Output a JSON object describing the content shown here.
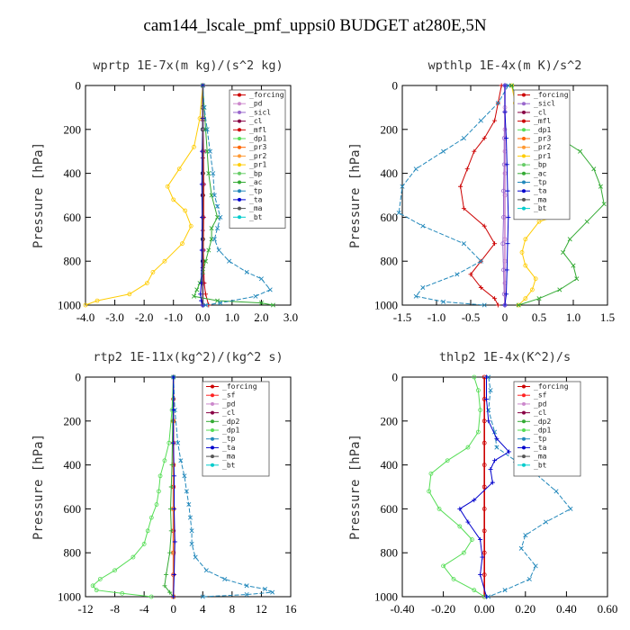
{
  "figure_title": "cam144_lscale_pmf_uppsi0  BUDGET at280E,5N",
  "chart_data": [
    {
      "type": "line",
      "title": "wprtp  1E-7x(m kg)/(s^2 kg)",
      "ylabel": "Pressure [hPa]",
      "xlim": [
        -4.0,
        3.0
      ],
      "ylim": [
        1000,
        0
      ],
      "xticks": [
        "-4.0",
        "-3.0",
        "-2.0",
        "-1.0",
        "0.0",
        "1.0",
        "2.0",
        "3.0"
      ],
      "yticks": [
        "0",
        "200",
        "400",
        "600",
        "800",
        "1000"
      ],
      "legend": [
        "_forcing",
        "_pd",
        "_sicl",
        "_cl",
        "_mfl",
        "_dp1",
        "_pr3",
        "_pr2",
        "_pr1",
        "_bp",
        "_ac",
        "_tp",
        "_ta",
        "_ma",
        "_bt"
      ],
      "series": [
        {
          "name": "_forcing",
          "color": "#000000",
          "marker": "circle",
          "x": [
            0,
            0,
            0,
            0,
            0,
            0,
            0,
            0,
            0,
            0,
            0
          ],
          "y": [
            0,
            100,
            200,
            300,
            400,
            500,
            600,
            700,
            800,
            900,
            1000
          ]
        },
        {
          "name": "_pd",
          "color": "#cc88cc",
          "marker": "circle",
          "x": [
            0,
            0,
            0,
            0,
            0,
            0,
            0,
            0
          ],
          "y": [
            0,
            150,
            300,
            450,
            600,
            750,
            900,
            1000
          ]
        },
        {
          "name": "_sicl",
          "color": "#9966cc",
          "marker": "circle",
          "x": [
            0.02,
            0.02,
            0.03,
            0.03,
            0.02,
            0.02,
            0.02,
            0.01
          ],
          "y": [
            0,
            150,
            300,
            450,
            600,
            750,
            900,
            1000
          ]
        },
        {
          "name": "_cl",
          "color": "#880044",
          "marker": "plus",
          "x": [
            0,
            0,
            0,
            0,
            0,
            0,
            0
          ],
          "y": [
            0,
            160,
            330,
            500,
            660,
            830,
            1000
          ]
        },
        {
          "name": "_mfl",
          "color": "#cc0000",
          "marker": "plus",
          "x": [
            0,
            0,
            0.02,
            0.03,
            0.03,
            0.02,
            0.05,
            0.1,
            0.2
          ],
          "y": [
            0,
            150,
            300,
            450,
            600,
            750,
            900,
            950,
            1000
          ]
        },
        {
          "name": "_pr1",
          "color": "#ffcc00",
          "marker": "circle",
          "x": [
            0,
            -0.1,
            -0.3,
            -0.8,
            -1.2,
            -1.0,
            -0.6,
            -0.4,
            -0.7,
            -1.3,
            -1.7,
            -1.9,
            -2.5,
            -3.6,
            -4.0
          ],
          "y": [
            0,
            150,
            280,
            380,
            460,
            520,
            570,
            640,
            720,
            800,
            850,
            900,
            950,
            980,
            1000
          ]
        },
        {
          "name": "_ac",
          "color": "#33aa33",
          "marker": "x",
          "x": [
            0,
            0.05,
            0.1,
            0.15,
            0.2,
            0.3,
            0.5,
            0.3,
            0.3,
            0.2,
            0.1,
            0,
            -0.1,
            -0.2,
            -0.3,
            0.5,
            2.0,
            2.4
          ],
          "y": [
            0,
            100,
            200,
            300,
            400,
            500,
            600,
            650,
            700,
            750,
            800,
            850,
            900,
            930,
            960,
            980,
            990,
            1000
          ]
        },
        {
          "name": "_tp",
          "color": "#2288bb",
          "marker": "x",
          "x": [
            0,
            0.05,
            0.15,
            0.25,
            0.35,
            0.4,
            0.5,
            0.6,
            0.5,
            0.4,
            0.55,
            0.9,
            1.5,
            2.0,
            2.3,
            1.8,
            0.6,
            0.1
          ],
          "y": [
            0,
            100,
            200,
            300,
            400,
            500,
            550,
            600,
            650,
            700,
            750,
            800,
            850,
            880,
            930,
            960,
            990,
            1000
          ]
        },
        {
          "name": "_ta",
          "color": "#0000cc",
          "marker": "plus",
          "x": [
            0,
            0,
            -0.02,
            -0.03,
            -0.02,
            -0.03,
            -0.05,
            -0.08,
            -0.05,
            0
          ],
          "y": [
            0,
            150,
            300,
            450,
            600,
            750,
            900,
            950,
            980,
            1000
          ]
        },
        {
          "name": "_ma",
          "color": "#555555",
          "marker": "none",
          "x": [
            0,
            0,
            0,
            0,
            0,
            0
          ],
          "y": [
            0,
            200,
            400,
            600,
            800,
            1000
          ]
        }
      ]
    },
    {
      "type": "line",
      "title": "wpthlp  1E-4x(m K)/s^2",
      "ylabel": "Pressure [hPa]",
      "xlim": [
        -1.5,
        1.5
      ],
      "ylim": [
        1000,
        0
      ],
      "xticks": [
        "-1.5",
        "-1.0",
        "-0.5",
        "0",
        "0.5",
        "1.0",
        "1.5"
      ],
      "yticks": [
        "0",
        "200",
        "400",
        "600",
        "800",
        "1000"
      ],
      "legend": [
        "_forcing",
        "_sicl",
        "_cl",
        "_mfl",
        "_dp1",
        "_pr3",
        "_pr2",
        "_pr1",
        "_bp",
        "_ac",
        "_tp",
        "_ta",
        "_ma",
        "_bt"
      ],
      "series": [
        {
          "name": "_forcing",
          "color": "#cc88cc",
          "marker": "circle",
          "x": [
            0,
            0,
            0,
            0,
            0,
            0,
            0,
            0,
            0,
            0,
            0
          ],
          "y": [
            0,
            100,
            200,
            300,
            400,
            500,
            600,
            700,
            800,
            900,
            1000
          ]
        },
        {
          "name": "_sicl",
          "color": "#9966cc",
          "marker": "circle",
          "x": [
            0,
            0,
            -0.01,
            -0.01,
            -0.02,
            -0.02,
            -0.03,
            -0.02,
            -0.01,
            0
          ],
          "y": [
            0,
            120,
            240,
            360,
            480,
            600,
            720,
            840,
            950,
            1000
          ]
        },
        {
          "name": "_mfl",
          "color": "#cc0000",
          "marker": "plus",
          "x": [
            -0.05,
            -0.1,
            -0.15,
            -0.3,
            -0.45,
            -0.55,
            -0.65,
            -0.6,
            -0.3,
            -0.15,
            -0.35,
            -0.5,
            -0.35,
            -0.15,
            -0.1
          ],
          "y": [
            0,
            80,
            160,
            240,
            300,
            380,
            460,
            560,
            640,
            720,
            800,
            860,
            920,
            970,
            1000
          ]
        },
        {
          "name": "_pr1",
          "color": "#ffcc00",
          "marker": "circle",
          "x": [
            0.1,
            0.15,
            0.3,
            0.5,
            0.7,
            0.75,
            0.85,
            0.9,
            0.5,
            0.3,
            0.25,
            0.3,
            0.45,
            0.4,
            0.3,
            0.2
          ],
          "y": [
            0,
            80,
            160,
            240,
            320,
            400,
            480,
            580,
            620,
            700,
            760,
            820,
            880,
            930,
            970,
            1000
          ]
        },
        {
          "name": "_ac",
          "color": "#33aa33",
          "marker": "x",
          "x": [
            0.1,
            0.2,
            0.5,
            0.8,
            1.1,
            1.3,
            1.4,
            1.45,
            1.2,
            0.95,
            0.85,
            1.0,
            1.05,
            0.8,
            0.5,
            0.2
          ],
          "y": [
            0,
            80,
            160,
            240,
            300,
            380,
            460,
            540,
            620,
            700,
            760,
            820,
            880,
            930,
            970,
            1000
          ]
        },
        {
          "name": "_tp",
          "color": "#2288bb",
          "marker": "x",
          "x": [
            0.05,
            -0.1,
            -0.35,
            -0.6,
            -0.9,
            -1.3,
            -1.5,
            -1.55,
            -1.2,
            -0.6,
            -0.35,
            -0.7,
            -1.2,
            -1.3,
            -0.9,
            -0.3
          ],
          "y": [
            0,
            80,
            160,
            240,
            300,
            380,
            460,
            580,
            640,
            720,
            800,
            860,
            920,
            960,
            985,
            1000
          ]
        },
        {
          "name": "_ta",
          "color": "#0000cc",
          "marker": "plus",
          "x": [
            0,
            0,
            0.02,
            0.03,
            0.04,
            0.05,
            0.04,
            0.03,
            0.02,
            0
          ],
          "y": [
            0,
            120,
            240,
            360,
            480,
            600,
            720,
            840,
            950,
            1000
          ]
        }
      ]
    },
    {
      "type": "line",
      "title": "rtp2  1E-11x(kg^2)/(kg^2 s)",
      "ylabel": "Pressure [hPa]",
      "xlim": [
        -12,
        16
      ],
      "ylim": [
        1000,
        0
      ],
      "xticks": [
        "-12",
        "-8",
        "-4",
        "0",
        "4",
        "8",
        "12",
        "16"
      ],
      "yticks": [
        "0",
        "200",
        "400",
        "600",
        "800",
        "1000"
      ],
      "legend": [
        "_forcing",
        "_sf",
        "_pd",
        "_cl",
        "_dp2",
        "_dp1",
        "_tp",
        "_ta",
        "_ma",
        "_bt"
      ],
      "series": [
        {
          "name": "_forcing",
          "color": "#cc0000",
          "marker": "circle",
          "x": [
            0,
            0,
            0,
            0,
            0,
            0,
            0,
            0,
            0,
            0,
            0
          ],
          "y": [
            0,
            100,
            200,
            300,
            400,
            500,
            600,
            700,
            800,
            900,
            1000
          ]
        },
        {
          "name": "_sf",
          "color": "#ff2222",
          "marker": "plus",
          "x": [
            0,
            0,
            0,
            0,
            0,
            0
          ],
          "y": [
            0,
            200,
            400,
            600,
            800,
            1000
          ]
        },
        {
          "name": "_pd",
          "color": "#ff9933",
          "marker": "x",
          "x": [
            0,
            0,
            0,
            0,
            0,
            0
          ],
          "y": [
            0,
            200,
            400,
            600,
            800,
            1000
          ]
        },
        {
          "name": "_dp1",
          "color": "#55dd55",
          "marker": "circle",
          "x": [
            0,
            -0.2,
            -0.6,
            -1.2,
            -1.8,
            -2.0,
            -2.3,
            -3.0,
            -3.5,
            -4.0,
            -5.5,
            -8.0,
            -10.0,
            -11.0,
            -10.5,
            -7.0,
            -3.0
          ],
          "y": [
            0,
            150,
            300,
            380,
            450,
            520,
            580,
            640,
            700,
            760,
            820,
            880,
            920,
            950,
            970,
            985,
            1000
          ]
        },
        {
          "name": "_dp2",
          "color": "#33aa33",
          "marker": "plus",
          "x": [
            0,
            -0.1,
            -0.2,
            -0.3,
            -0.4,
            -0.3,
            -0.5,
            -1.0,
            -1.2,
            -0.5,
            0
          ],
          "y": [
            0,
            200,
            400,
            500,
            600,
            700,
            800,
            900,
            950,
            980,
            1000
          ]
        },
        {
          "name": "_tp",
          "color": "#2288bb",
          "marker": "x",
          "x": [
            0,
            0.2,
            0.6,
            1.0,
            1.5,
            1.8,
            2.1,
            2.3,
            2.5,
            2.5,
            3.0,
            4.5,
            7.0,
            10.0,
            12.5,
            13.5,
            10.0,
            4.0
          ],
          "y": [
            0,
            150,
            300,
            380,
            450,
            520,
            580,
            640,
            700,
            760,
            820,
            880,
            920,
            950,
            965,
            980,
            990,
            1000
          ]
        },
        {
          "name": "_ta",
          "color": "#0000cc",
          "marker": "plus",
          "x": [
            0,
            0,
            0,
            0.1,
            0.1,
            0.2,
            0.1,
            0
          ],
          "y": [
            0,
            150,
            300,
            450,
            600,
            750,
            900,
            1000
          ]
        }
      ]
    },
    {
      "type": "line",
      "title": "thlp2  1E-4x(K^2)/s",
      "ylabel": "Pressure [hPa]",
      "xlim": [
        -0.4,
        0.6
      ],
      "ylim": [
        1000,
        0
      ],
      "xticks": [
        "-0.40",
        "-0.20",
        "0.00",
        "0.20",
        "0.40",
        "0.60"
      ],
      "yticks": [
        "0",
        "200",
        "400",
        "600",
        "800",
        "1000"
      ],
      "legend": [
        "_forcing",
        "_sf",
        "_pd",
        "_cl",
        "_dp2",
        "_dp1",
        "_tp",
        "_ta",
        "_ma",
        "_bt"
      ],
      "series": [
        {
          "name": "_forcing",
          "color": "#cc0000",
          "marker": "circle",
          "x": [
            0,
            0,
            0,
            0,
            0,
            0,
            0,
            0,
            0,
            0,
            0
          ],
          "y": [
            0,
            100,
            200,
            300,
            400,
            500,
            600,
            700,
            800,
            900,
            1000
          ]
        },
        {
          "name": "_dp1",
          "color": "#55dd55",
          "marker": "circle",
          "x": [
            -0.05,
            -0.03,
            -0.02,
            -0.03,
            -0.08,
            -0.18,
            -0.26,
            -0.27,
            -0.22,
            -0.12,
            -0.06,
            -0.1,
            -0.2,
            -0.15,
            -0.05,
            0
          ],
          "y": [
            0,
            60,
            150,
            250,
            320,
            380,
            440,
            520,
            600,
            680,
            740,
            800,
            860,
            920,
            970,
            1000
          ]
        },
        {
          "name": "_tp",
          "color": "#2288bb",
          "marker": "x",
          "x": [
            0.02,
            0.03,
            0.02,
            0.05,
            0.06,
            0.15,
            0.25,
            0.35,
            0.42,
            0.3,
            0.2,
            0.18,
            0.25,
            0.22,
            0.1,
            0.02
          ],
          "y": [
            0,
            60,
            150,
            250,
            320,
            380,
            440,
            520,
            600,
            660,
            720,
            780,
            860,
            920,
            970,
            1000
          ]
        },
        {
          "name": "_ta",
          "color": "#0000cc",
          "marker": "plus",
          "x": [
            0.01,
            0.01,
            0.02,
            0.06,
            0.12,
            0.05,
            0.03,
            0.04,
            -0.05,
            -0.12,
            -0.08,
            -0.02,
            -0.01,
            -0.02,
            0.01
          ],
          "y": [
            0,
            100,
            200,
            280,
            340,
            380,
            420,
            480,
            560,
            600,
            660,
            740,
            820,
            900,
            1000
          ]
        }
      ]
    }
  ]
}
